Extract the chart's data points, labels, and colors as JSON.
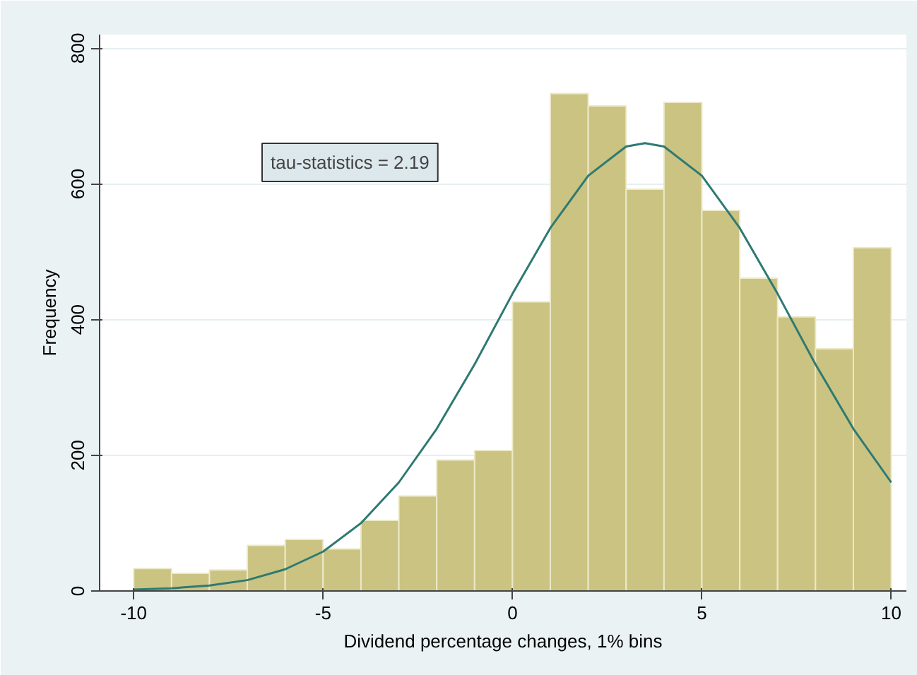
{
  "chart_data": {
    "type": "histogram",
    "xlabel": "Dividend percentage changes, 1% bins",
    "ylabel": "Frequency",
    "annotations": [
      "tau-statistics = 2.19"
    ],
    "bins": [
      -10,
      -9,
      -8,
      -7,
      -6,
      -5,
      -4,
      -3,
      -2,
      -1,
      0,
      1,
      2,
      3,
      4,
      5,
      6,
      7,
      8,
      9,
      10
    ],
    "values": [
      33,
      26,
      31,
      67,
      76,
      62,
      104,
      140,
      193,
      207,
      426,
      733,
      715,
      592,
      720,
      561,
      461,
      404,
      357,
      506
    ],
    "color": "#cbc382",
    "series": [
      {
        "type": "line",
        "color": "#2e7a72",
        "x": [
          -10,
          -9,
          -8,
          -7,
          -6,
          -5,
          -4,
          -3,
          -2,
          -1,
          0,
          1,
          2,
          3,
          3.5,
          4,
          5,
          6,
          7,
          8,
          9,
          10
        ],
        "values": [
          2,
          4,
          8,
          16,
          32,
          58,
          100,
          160,
          239,
          334,
          438,
          535,
          612,
          655,
          660,
          655,
          612,
          535,
          438,
          334,
          239,
          160
        ]
      }
    ],
    "xlim": [
      -10.9,
      10.4
    ],
    "ylim": [
      0,
      820
    ],
    "xticks": [
      -10,
      -5,
      0,
      5,
      10
    ],
    "yticks": [
      0,
      200,
      400,
      600,
      800
    ],
    "grid": "y"
  }
}
